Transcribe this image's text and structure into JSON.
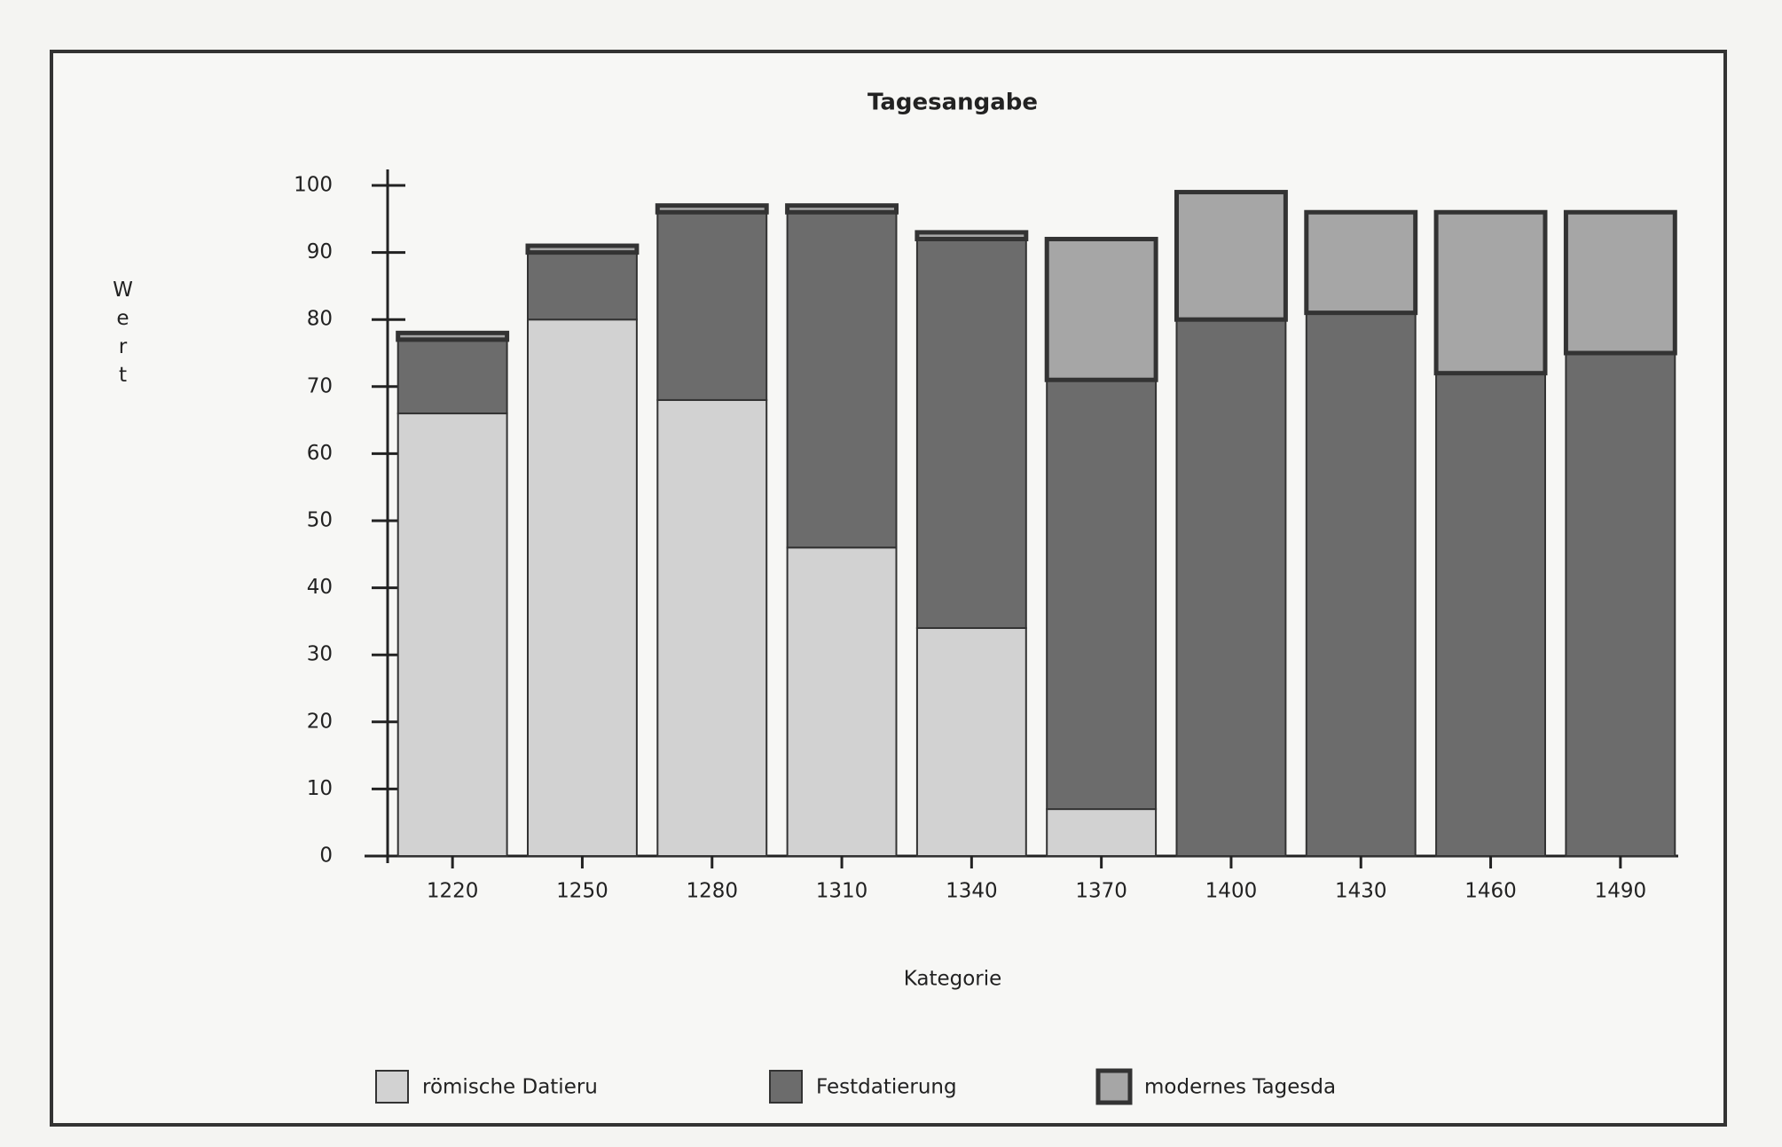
{
  "chart_data": {
    "type": "stacked_bar",
    "title": "Tagesangabe",
    "x_label": "Kategorie",
    "y_label": "Wert",
    "categories": [
      "1220",
      "1250",
      "1280",
      "1310",
      "1340",
      "1370",
      "1400",
      "1430",
      "1460",
      "1490"
    ],
    "series": [
      {
        "name": "römische Datieru",
        "color": "#d2d2d2",
        "values": [
          66,
          80,
          68,
          46,
          34,
          7,
          0,
          0,
          0,
          0
        ]
      },
      {
        "name": "Festdatierung",
        "color": "#6c6c6c",
        "values": [
          11,
          10,
          28,
          50,
          58,
          64,
          80,
          81,
          72,
          75
        ]
      },
      {
        "name": "modernes Tagesda",
        "color": "#a6a6a6",
        "values": [
          1,
          1,
          1,
          1,
          1,
          21,
          19,
          15,
          24,
          21
        ]
      }
    ],
    "ylim": [
      0,
      100
    ],
    "yticks": [
      0,
      10,
      20,
      30,
      40,
      50,
      60,
      70,
      80,
      90,
      100
    ]
  }
}
